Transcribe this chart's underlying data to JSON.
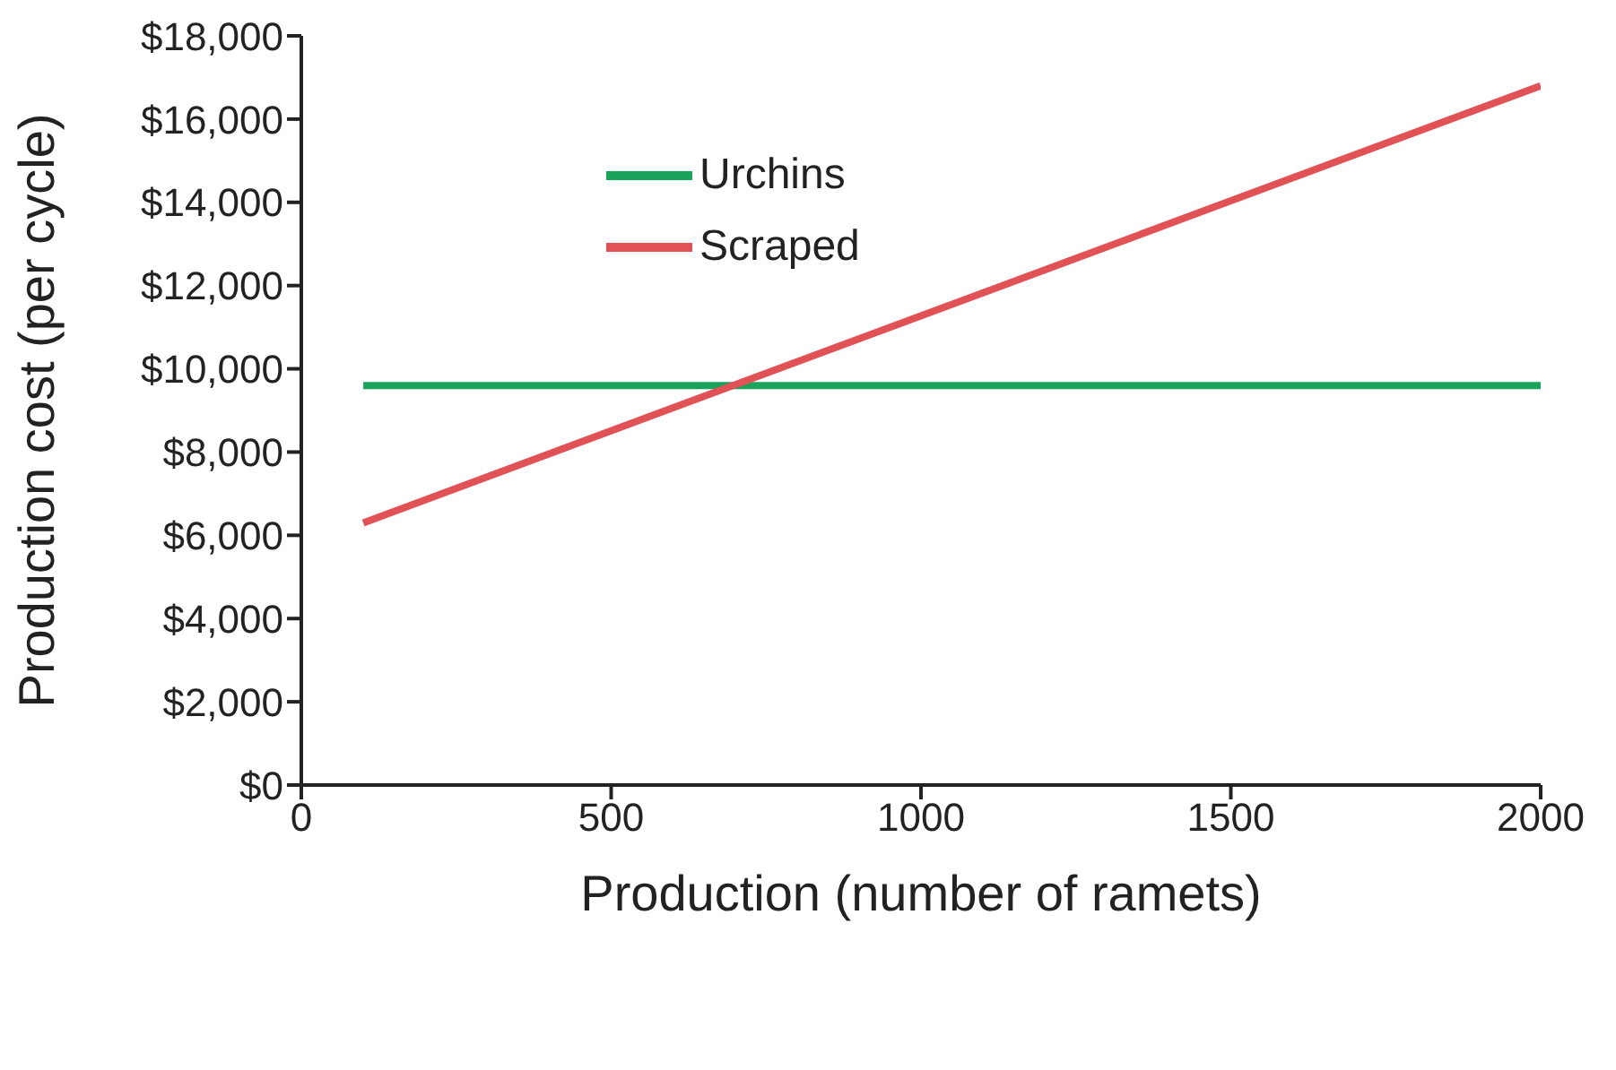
{
  "chart_data": {
    "type": "line",
    "xlabel": "Production (number of ramets)",
    "ylabel": "Production cost (per cycle)",
    "x": [
      100,
      2000
    ],
    "series": [
      {
        "name": "Urchins",
        "color": "#1aa35a",
        "values": [
          9600,
          9600
        ]
      },
      {
        "name": "Scraped",
        "color": "#e05256",
        "values": [
          6300,
          16800
        ]
      }
    ],
    "xlim": [
      0,
      2000
    ],
    "xticks": [
      0,
      500,
      1000,
      1500,
      2000
    ],
    "ylim": [
      0,
      18000
    ],
    "yticks": [
      {
        "value": 0,
        "label": "$0"
      },
      {
        "value": 2000,
        "label": "$2,000"
      },
      {
        "value": 4000,
        "label": "$4,000"
      },
      {
        "value": 6000,
        "label": "$6,000"
      },
      {
        "value": 8000,
        "label": "$8,000"
      },
      {
        "value": 10000,
        "label": "$10,000"
      },
      {
        "value": 12000,
        "label": "$12,000"
      },
      {
        "value": 14000,
        "label": "$14,000"
      },
      {
        "value": 16000,
        "label": "$16,000"
      },
      {
        "value": 18000,
        "label": "$18,000"
      }
    ],
    "grid": false,
    "legend": "top left",
    "marker": "none",
    "line_style": "solid"
  }
}
